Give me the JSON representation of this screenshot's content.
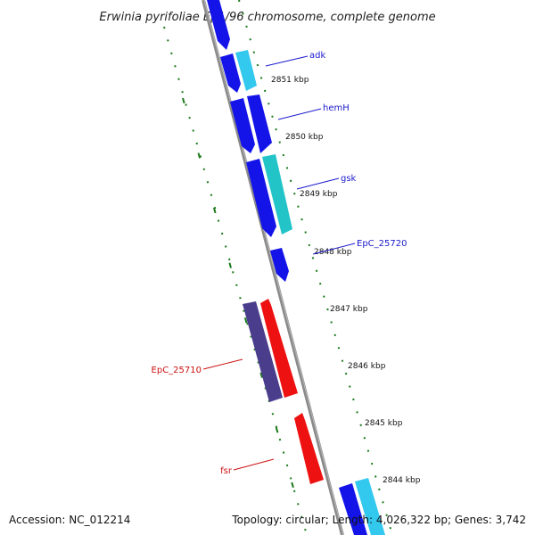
{
  "title": "Erwinia pyrifoliae Ep1/96 chromosome, complete genome",
  "footer": {
    "accession": "Accession: NC_012214",
    "summary": "Topology: circular; Length: 4,026,322 bp; Genes: 3,742"
  },
  "ticks": [
    {
      "label": "2851 kbp"
    },
    {
      "label": "2850 kbp"
    },
    {
      "label": "2849 kbp"
    },
    {
      "label": "2848 kbp"
    },
    {
      "label": "2847 kbp"
    },
    {
      "label": "2846 kbp"
    },
    {
      "label": "2845 kbp"
    },
    {
      "label": "2844 kbp"
    }
  ],
  "gene_labels": [
    {
      "name": "adk",
      "strand": "forward"
    },
    {
      "name": "hemH",
      "strand": "forward"
    },
    {
      "name": "gsk",
      "strand": "forward"
    },
    {
      "name": "EpC_25720",
      "strand": "forward"
    },
    {
      "name": "EpC_25710",
      "strand": "reverse"
    },
    {
      "name": "fsr",
      "strand": "reverse"
    }
  ],
  "colors": {
    "forward_cds": "#1a1aee",
    "forward_cds_light": "#33c8e8",
    "reverse_cds": "#ee1111",
    "reverse_cds_dark": "#4a3d8c",
    "backbone": "#888888",
    "tick_marks": "#1a7a1a",
    "forward_label": "#1a1acc",
    "reverse_label": "#cc1111"
  }
}
